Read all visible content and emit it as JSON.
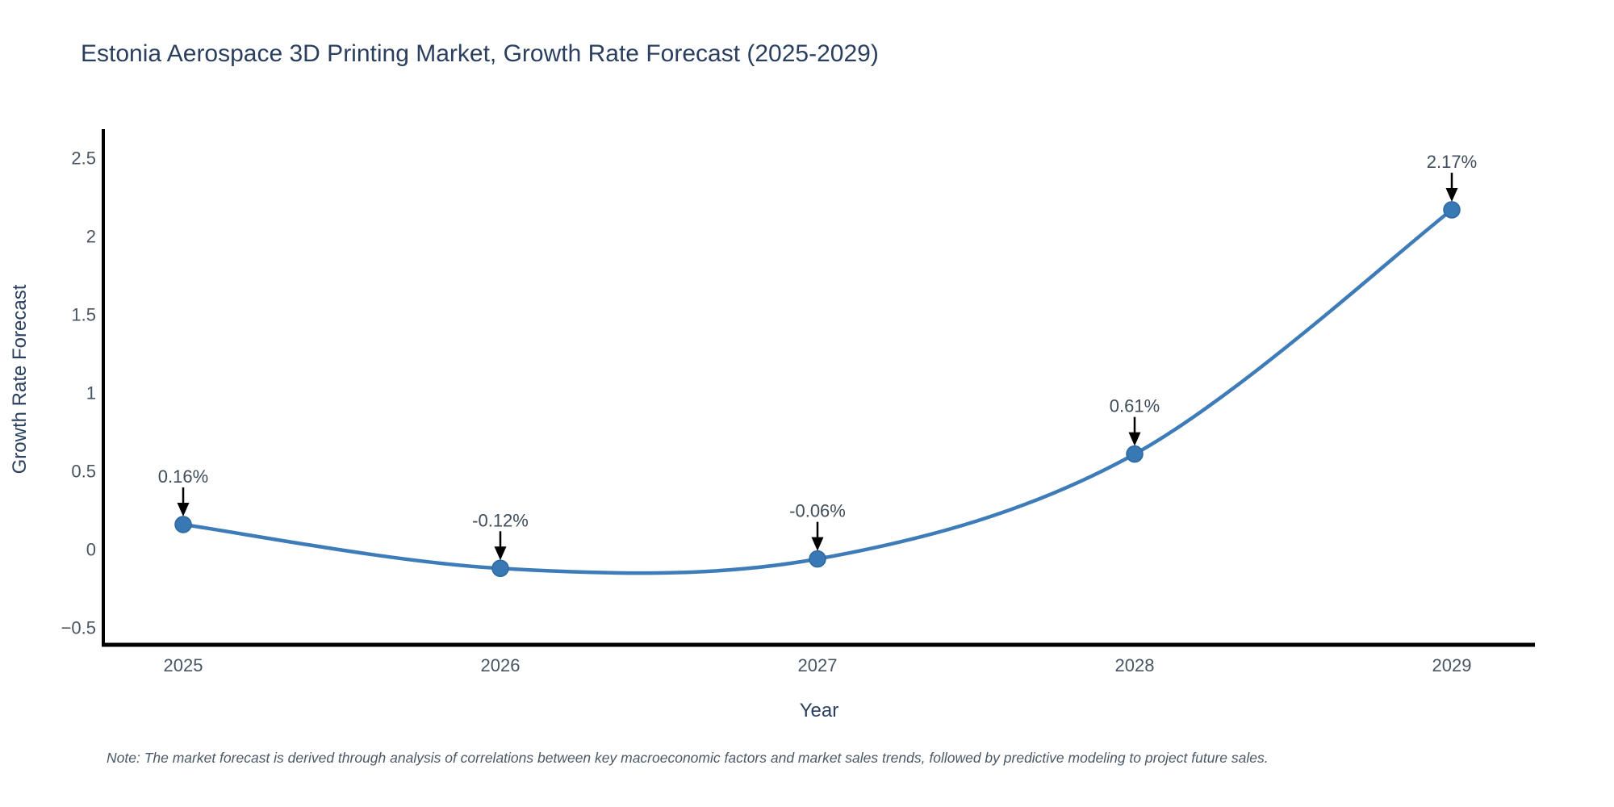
{
  "page": {
    "title": "Estonia Aerospace 3D Printing Market, Growth Rate Forecast (2025-2029)",
    "footnote": "Note: The market forecast is derived through analysis of correlations between key macroeconomic factors and market sales trends, followed by predictive modeling to project future sales."
  },
  "chart_data": {
    "type": "line",
    "line_shape": "spline",
    "title": "Estonia Aerospace 3D Printing Market, Growth Rate Forecast (2025-2029)",
    "xlabel": "Year",
    "ylabel": "Growth Rate Forecast",
    "categories": [
      2025,
      2026,
      2027,
      2028,
      2029
    ],
    "values": [
      0.16,
      -0.12,
      -0.06,
      0.61,
      2.17
    ],
    "point_labels": [
      "0.16%",
      "-0.12%",
      "-0.06%",
      "0.61%",
      "2.17%"
    ],
    "yticks": [
      2.5,
      2,
      1.5,
      1,
      0.5,
      0,
      -0.5
    ],
    "ytick_labels": [
      "2.5",
      "2",
      "1.5",
      "1",
      "0.5",
      "0",
      "−0.5"
    ],
    "ylim": [
      -0.6,
      2.7
    ],
    "grid": false,
    "legend": false,
    "annotations_have_arrows": true,
    "colors": {
      "line": "#3d7cb8",
      "marker_fill": "#3878b4",
      "marker_edge": "#2d699f",
      "axis_line": "#000000",
      "arrow": "#000000",
      "title_text": "#2a3f5f",
      "tick_text": "#4a5563"
    }
  }
}
